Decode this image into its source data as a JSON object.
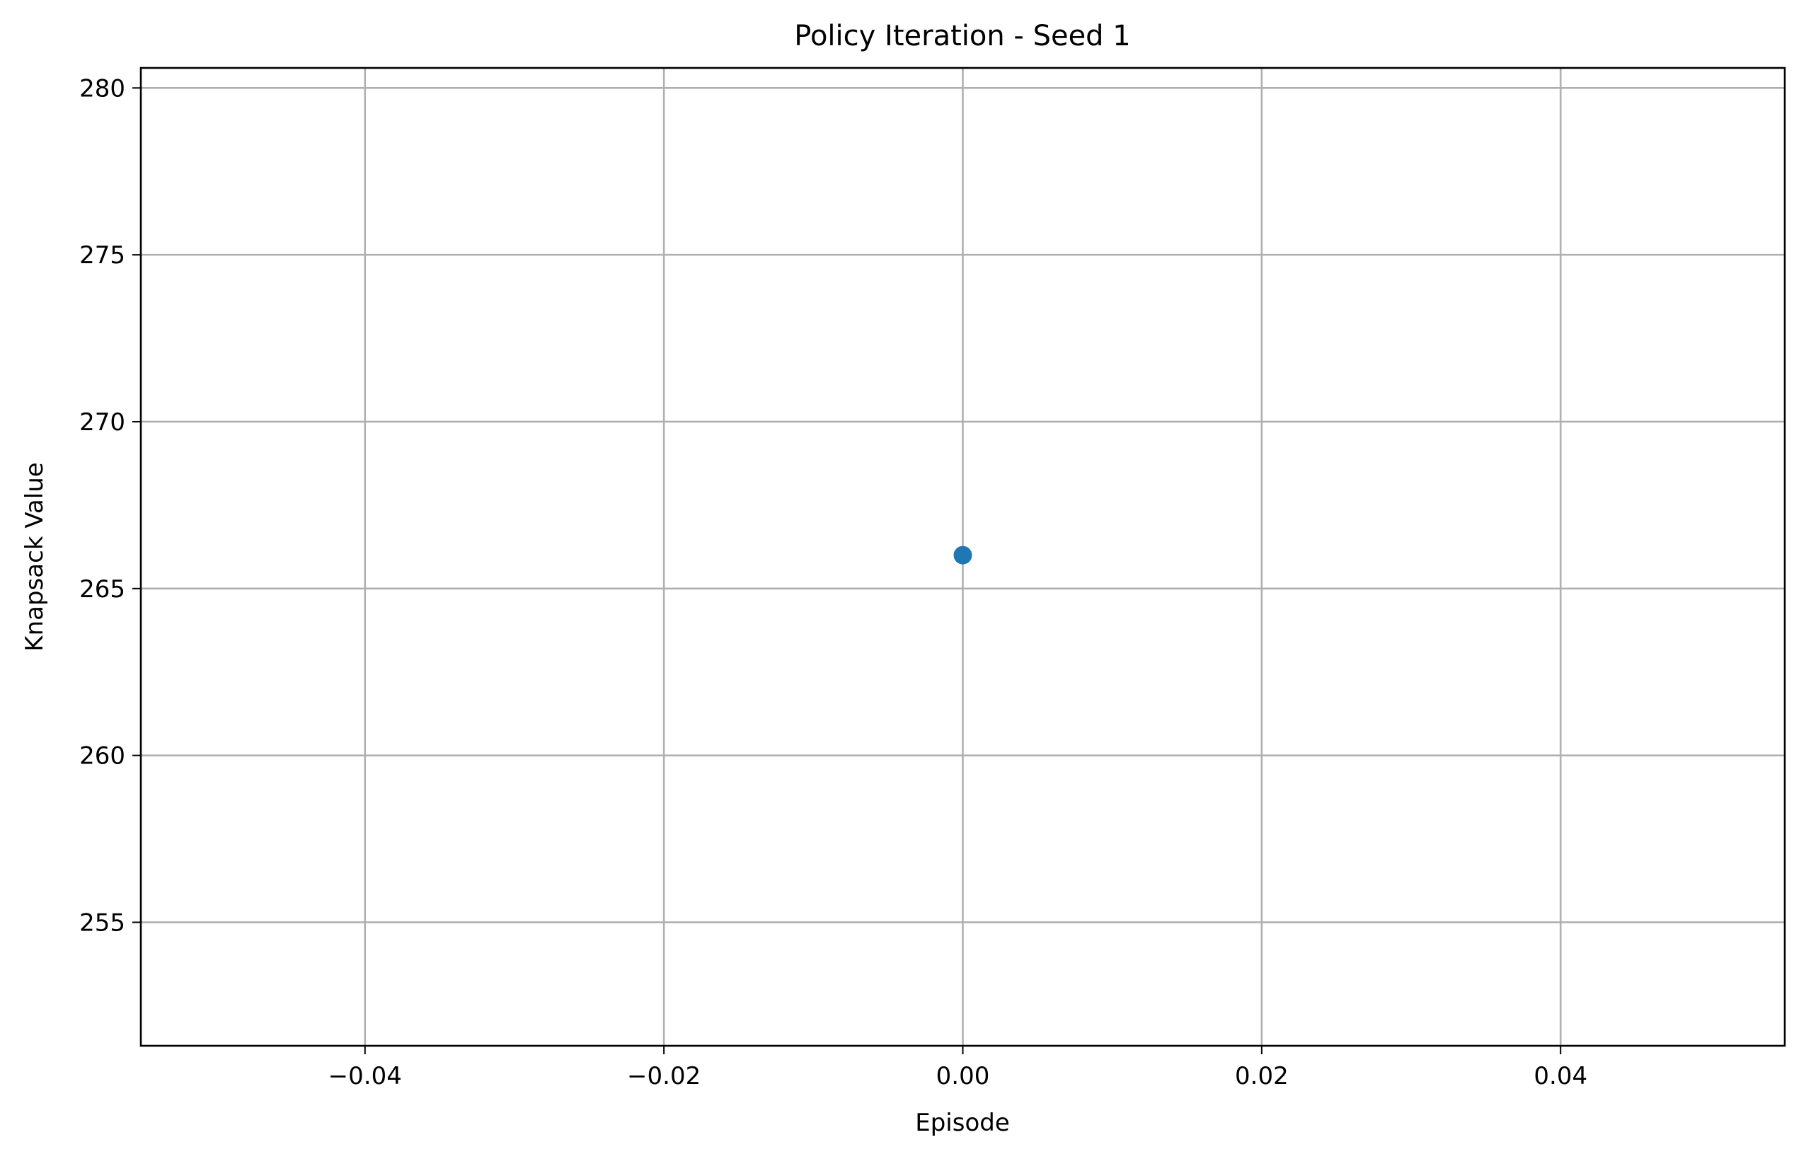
{
  "chart_data": {
    "type": "scatter",
    "title": "Policy Iteration - Seed 1",
    "xlabel": "Episode",
    "ylabel": "Knapsack Value",
    "xlim": [
      -0.055,
      0.055
    ],
    "ylim": [
      251.3,
      280.6
    ],
    "x_ticks": [
      -0.04,
      -0.02,
      0.0,
      0.02,
      0.04
    ],
    "x_tick_labels": [
      "−0.04",
      "−0.02",
      "0.00",
      "0.02",
      "0.04"
    ],
    "y_ticks": [
      255,
      260,
      265,
      270,
      275,
      280
    ],
    "y_tick_labels": [
      "255",
      "260",
      "265",
      "270",
      "275",
      "280"
    ],
    "grid": true,
    "series": [
      {
        "x": [
          0
        ],
        "y": [
          266
        ],
        "color": "#1f77b4",
        "marker": "circle"
      }
    ]
  }
}
